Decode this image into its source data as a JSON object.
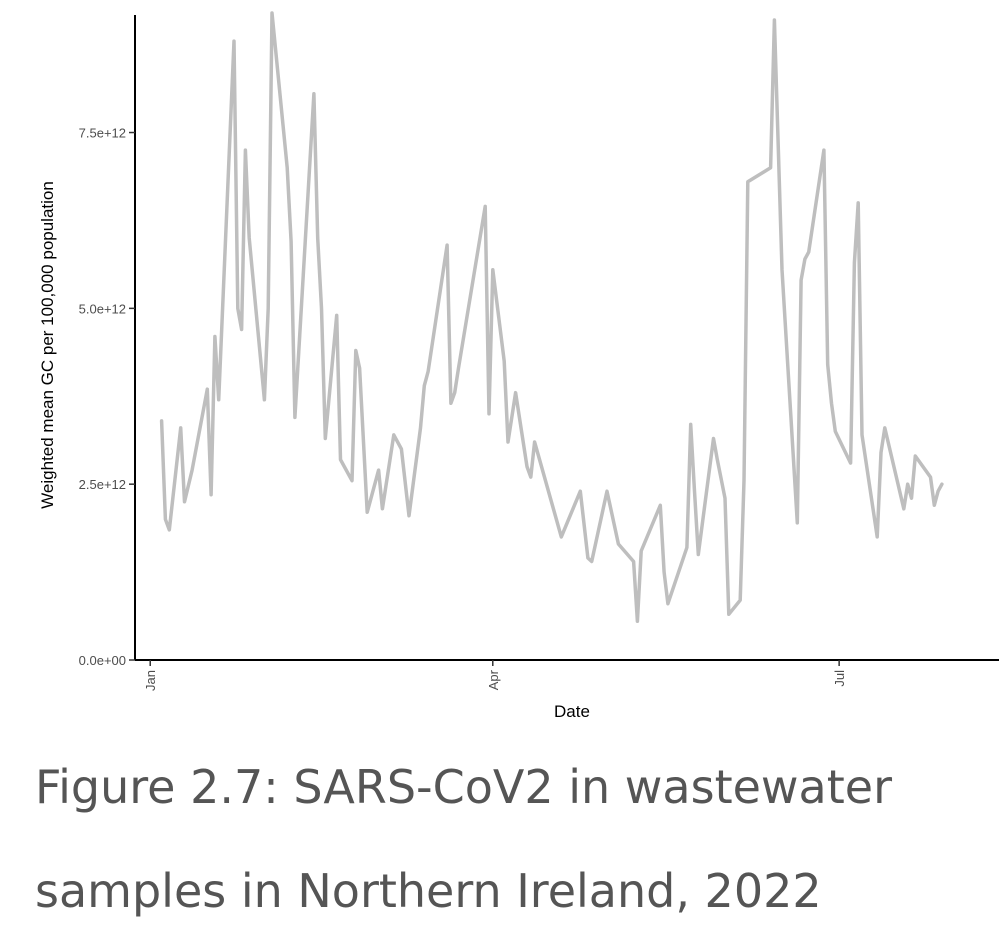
{
  "caption": "Figure 2.7: SARS-CoV2 in wastewater samples in Northern Ireland, 2022",
  "chart_data": {
    "type": "line",
    "title": "",
    "xlabel": "Date",
    "ylabel": "Weighted mean GC per 100,000 population",
    "x_tick_labels": [
      "Jan",
      "Apr",
      "Jul"
    ],
    "x_tick_values": [
      "2022-01-01",
      "2022-04-01",
      "2022-07-01"
    ],
    "y_tick_labels": [
      "0.0e+00",
      "2.5e+12",
      "5.0e+12",
      "7.5e+12"
    ],
    "y_tick_values": [
      0,
      2500000000000,
      5000000000000,
      7500000000000
    ],
    "xlim": [
      "2021-12-28",
      "2022-08-12"
    ],
    "ylim": [
      0,
      9100000000000
    ],
    "grid": false,
    "line_color": "#bebebe",
    "series": [
      {
        "x": [
          "2022-01-04",
          "2022-01-05",
          "2022-01-06",
          "2022-01-09",
          "2022-01-10",
          "2022-01-12",
          "2022-01-16",
          "2022-01-17",
          "2022-01-18",
          "2022-01-19",
          "2022-01-23",
          "2022-01-24",
          "2022-01-25",
          "2022-01-26",
          "2022-01-27",
          "2022-01-31",
          "2022-02-01",
          "2022-02-02",
          "2022-02-06",
          "2022-02-07",
          "2022-02-08",
          "2022-02-13",
          "2022-02-14",
          "2022-02-15",
          "2022-02-16",
          "2022-02-19",
          "2022-02-20",
          "2022-02-23",
          "2022-02-24",
          "2022-02-25",
          "2022-02-27",
          "2022-03-02",
          "2022-03-03",
          "2022-03-06",
          "2022-03-08",
          "2022-03-10",
          "2022-03-13",
          "2022-03-14",
          "2022-03-15",
          "2022-03-20",
          "2022-03-21",
          "2022-03-22",
          "2022-03-23",
          "2022-03-30",
          "2022-03-31",
          "2022-04-01",
          "2022-04-04",
          "2022-04-05",
          "2022-04-07",
          "2022-04-10",
          "2022-04-11",
          "2022-04-12",
          "2022-04-19",
          "2022-04-24",
          "2022-04-26",
          "2022-04-27",
          "2022-05-01",
          "2022-05-04",
          "2022-05-08",
          "2022-05-09",
          "2022-05-10",
          "2022-05-15",
          "2022-05-16",
          "2022-05-17",
          "2022-05-22",
          "2022-05-23",
          "2022-05-24",
          "2022-05-25",
          "2022-05-29",
          "2022-05-30",
          "2022-06-01",
          "2022-06-02",
          "2022-06-05",
          "2022-06-06",
          "2022-06-07",
          "2022-06-13",
          "2022-06-14",
          "2022-06-16",
          "2022-06-20",
          "2022-06-21",
          "2022-06-22",
          "2022-06-23",
          "2022-06-27",
          "2022-06-28",
          "2022-06-29",
          "2022-06-30",
          "2022-07-04",
          "2022-07-05",
          "2022-07-06",
          "2022-07-07",
          "2022-07-11",
          "2022-07-12",
          "2022-07-13",
          "2022-07-18",
          "2022-07-19",
          "2022-07-20",
          "2022-07-21",
          "2022-07-25",
          "2022-07-26",
          "2022-07-27",
          "2022-07-28"
        ],
        "y": [
          3400000000000,
          2000000000000,
          1850000000000,
          3300000000000,
          2250000000000,
          2700000000000,
          3850000000000,
          2350000000000,
          4600000000000,
          3700000000000,
          8800000000000,
          5000000000000,
          4700000000000,
          7250000000000,
          6000000000000,
          3700000000000,
          5000000000000,
          9200000000000,
          7000000000000,
          5950000000000,
          3450000000000,
          8050000000000,
          6000000000000,
          5000000000000,
          3150000000000,
          4900000000000,
          2850000000000,
          2550000000000,
          4400000000000,
          4150000000000,
          2100000000000,
          2700000000000,
          2150000000000,
          3200000000000,
          3000000000000,
          2050000000000,
          3300000000000,
          3900000000000,
          4100000000000,
          5900000000000,
          3650000000000,
          3800000000000,
          4150000000000,
          6450000000000,
          3500000000000,
          5550000000000,
          4250000000000,
          3100000000000,
          3800000000000,
          2750000000000,
          2600000000000,
          3100000000000,
          1750000000000,
          2400000000000,
          1450000000000,
          1400000000000,
          2400000000000,
          1650000000000,
          1400000000000,
          550000000000,
          1550000000000,
          2200000000000,
          1250000000000,
          800000000000,
          1600000000000,
          3350000000000,
          2400000000000,
          1500000000000,
          3150000000000,
          2850000000000,
          2300000000000,
          650000000000,
          850000000000,
          2550000000000,
          6800000000000,
          7000000000000,
          9100000000000,
          5550000000000,
          1950000000000,
          5400000000000,
          5700000000000,
          5800000000000,
          7250000000000,
          4200000000000,
          3650000000000,
          3250000000000,
          2800000000000,
          5650000000000,
          6500000000000,
          3200000000000,
          1750000000000,
          2950000000000,
          3300000000000,
          2150000000000,
          2500000000000,
          2300000000000,
          2900000000000,
          2600000000000,
          2200000000000,
          2400000000000,
          2500000000000
        ]
      }
    ]
  }
}
